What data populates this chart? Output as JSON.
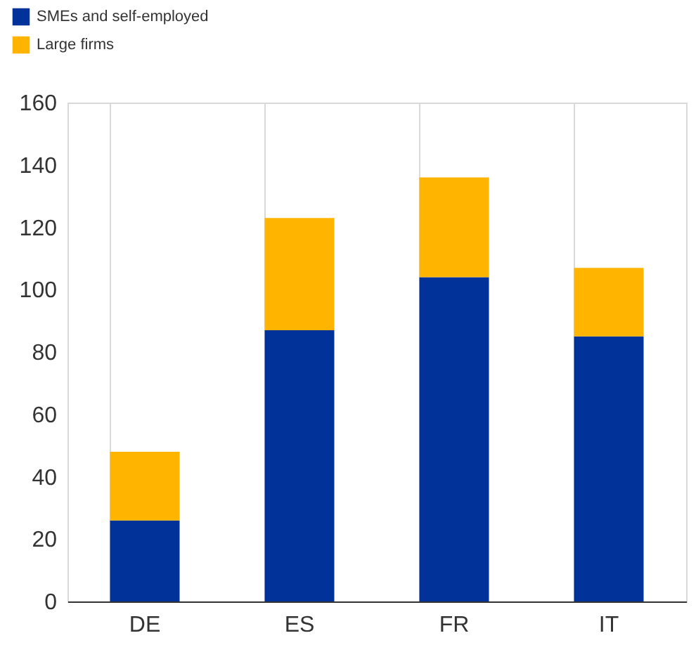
{
  "chart_data": {
    "type": "bar",
    "stacked": true,
    "categories": [
      "DE",
      "ES",
      "FR",
      "IT"
    ],
    "series": [
      {
        "name": "SMEs and self-employed",
        "color": "#003299",
        "values": [
          26,
          87,
          104,
          85
        ]
      },
      {
        "name": "Large firms",
        "color": "#ffb400",
        "values": [
          22,
          36,
          32,
          22
        ]
      }
    ],
    "ylim": [
      0,
      160
    ],
    "yticks": [
      0,
      20,
      40,
      60,
      80,
      100,
      120,
      140,
      160
    ],
    "grid": "x",
    "legend": "top left"
  }
}
